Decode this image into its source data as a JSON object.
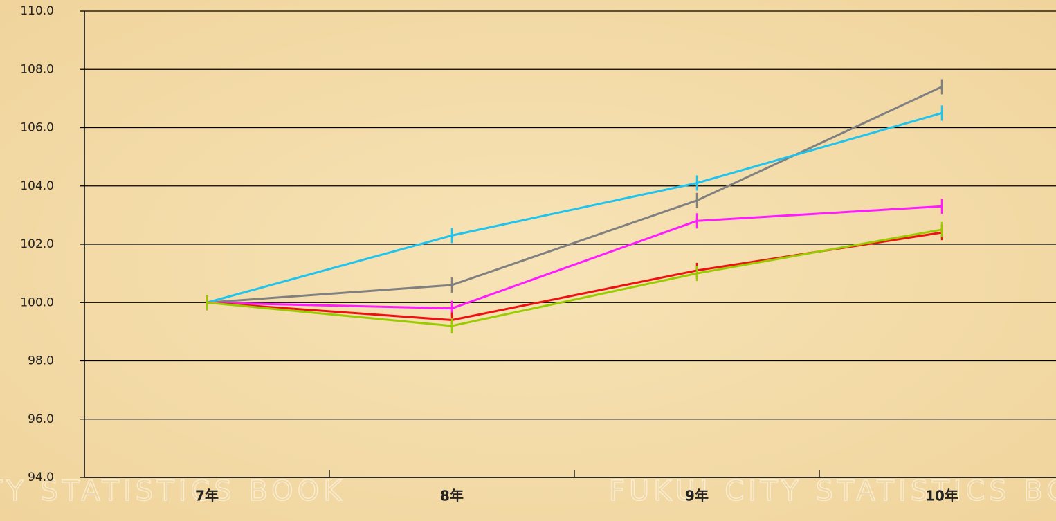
{
  "chart_data": {
    "type": "line",
    "watermark": "FUKUI CITY STATISTICS BOOK",
    "categories": [
      "7年",
      "8年",
      "9年",
      "10年"
    ],
    "series": [
      {
        "color": "#808080",
        "values": [
          100,
          100.6,
          103.5,
          107.4
        ]
      },
      {
        "color": "#1ec4ee",
        "values": [
          100,
          102.3,
          104.1,
          106.5
        ]
      },
      {
        "color": "#ff1aff",
        "values": [
          100,
          99.8,
          102.8,
          103.3
        ]
      },
      {
        "color": "#ee1111",
        "values": [
          100,
          99.4,
          101.1,
          102.4
        ]
      },
      {
        "color": "#99cc00",
        "values": [
          100,
          99.2,
          101.0,
          102.5
        ]
      }
    ],
    "ylim": [
      94,
      110
    ],
    "yticks": [
      {
        "value": 94,
        "label": "94.0"
      },
      {
        "value": 96,
        "label": "96.0"
      },
      {
        "value": 98,
        "label": "98.0"
      },
      {
        "value": 100,
        "label": "100.0"
      },
      {
        "value": 102,
        "label": "102.0"
      },
      {
        "value": 104,
        "label": "104.0"
      },
      {
        "value": 106,
        "label": "106.0"
      },
      {
        "value": 108,
        "label": "108.0"
      },
      {
        "value": 110,
        "label": "110.0"
      }
    ],
    "grid": true
  }
}
